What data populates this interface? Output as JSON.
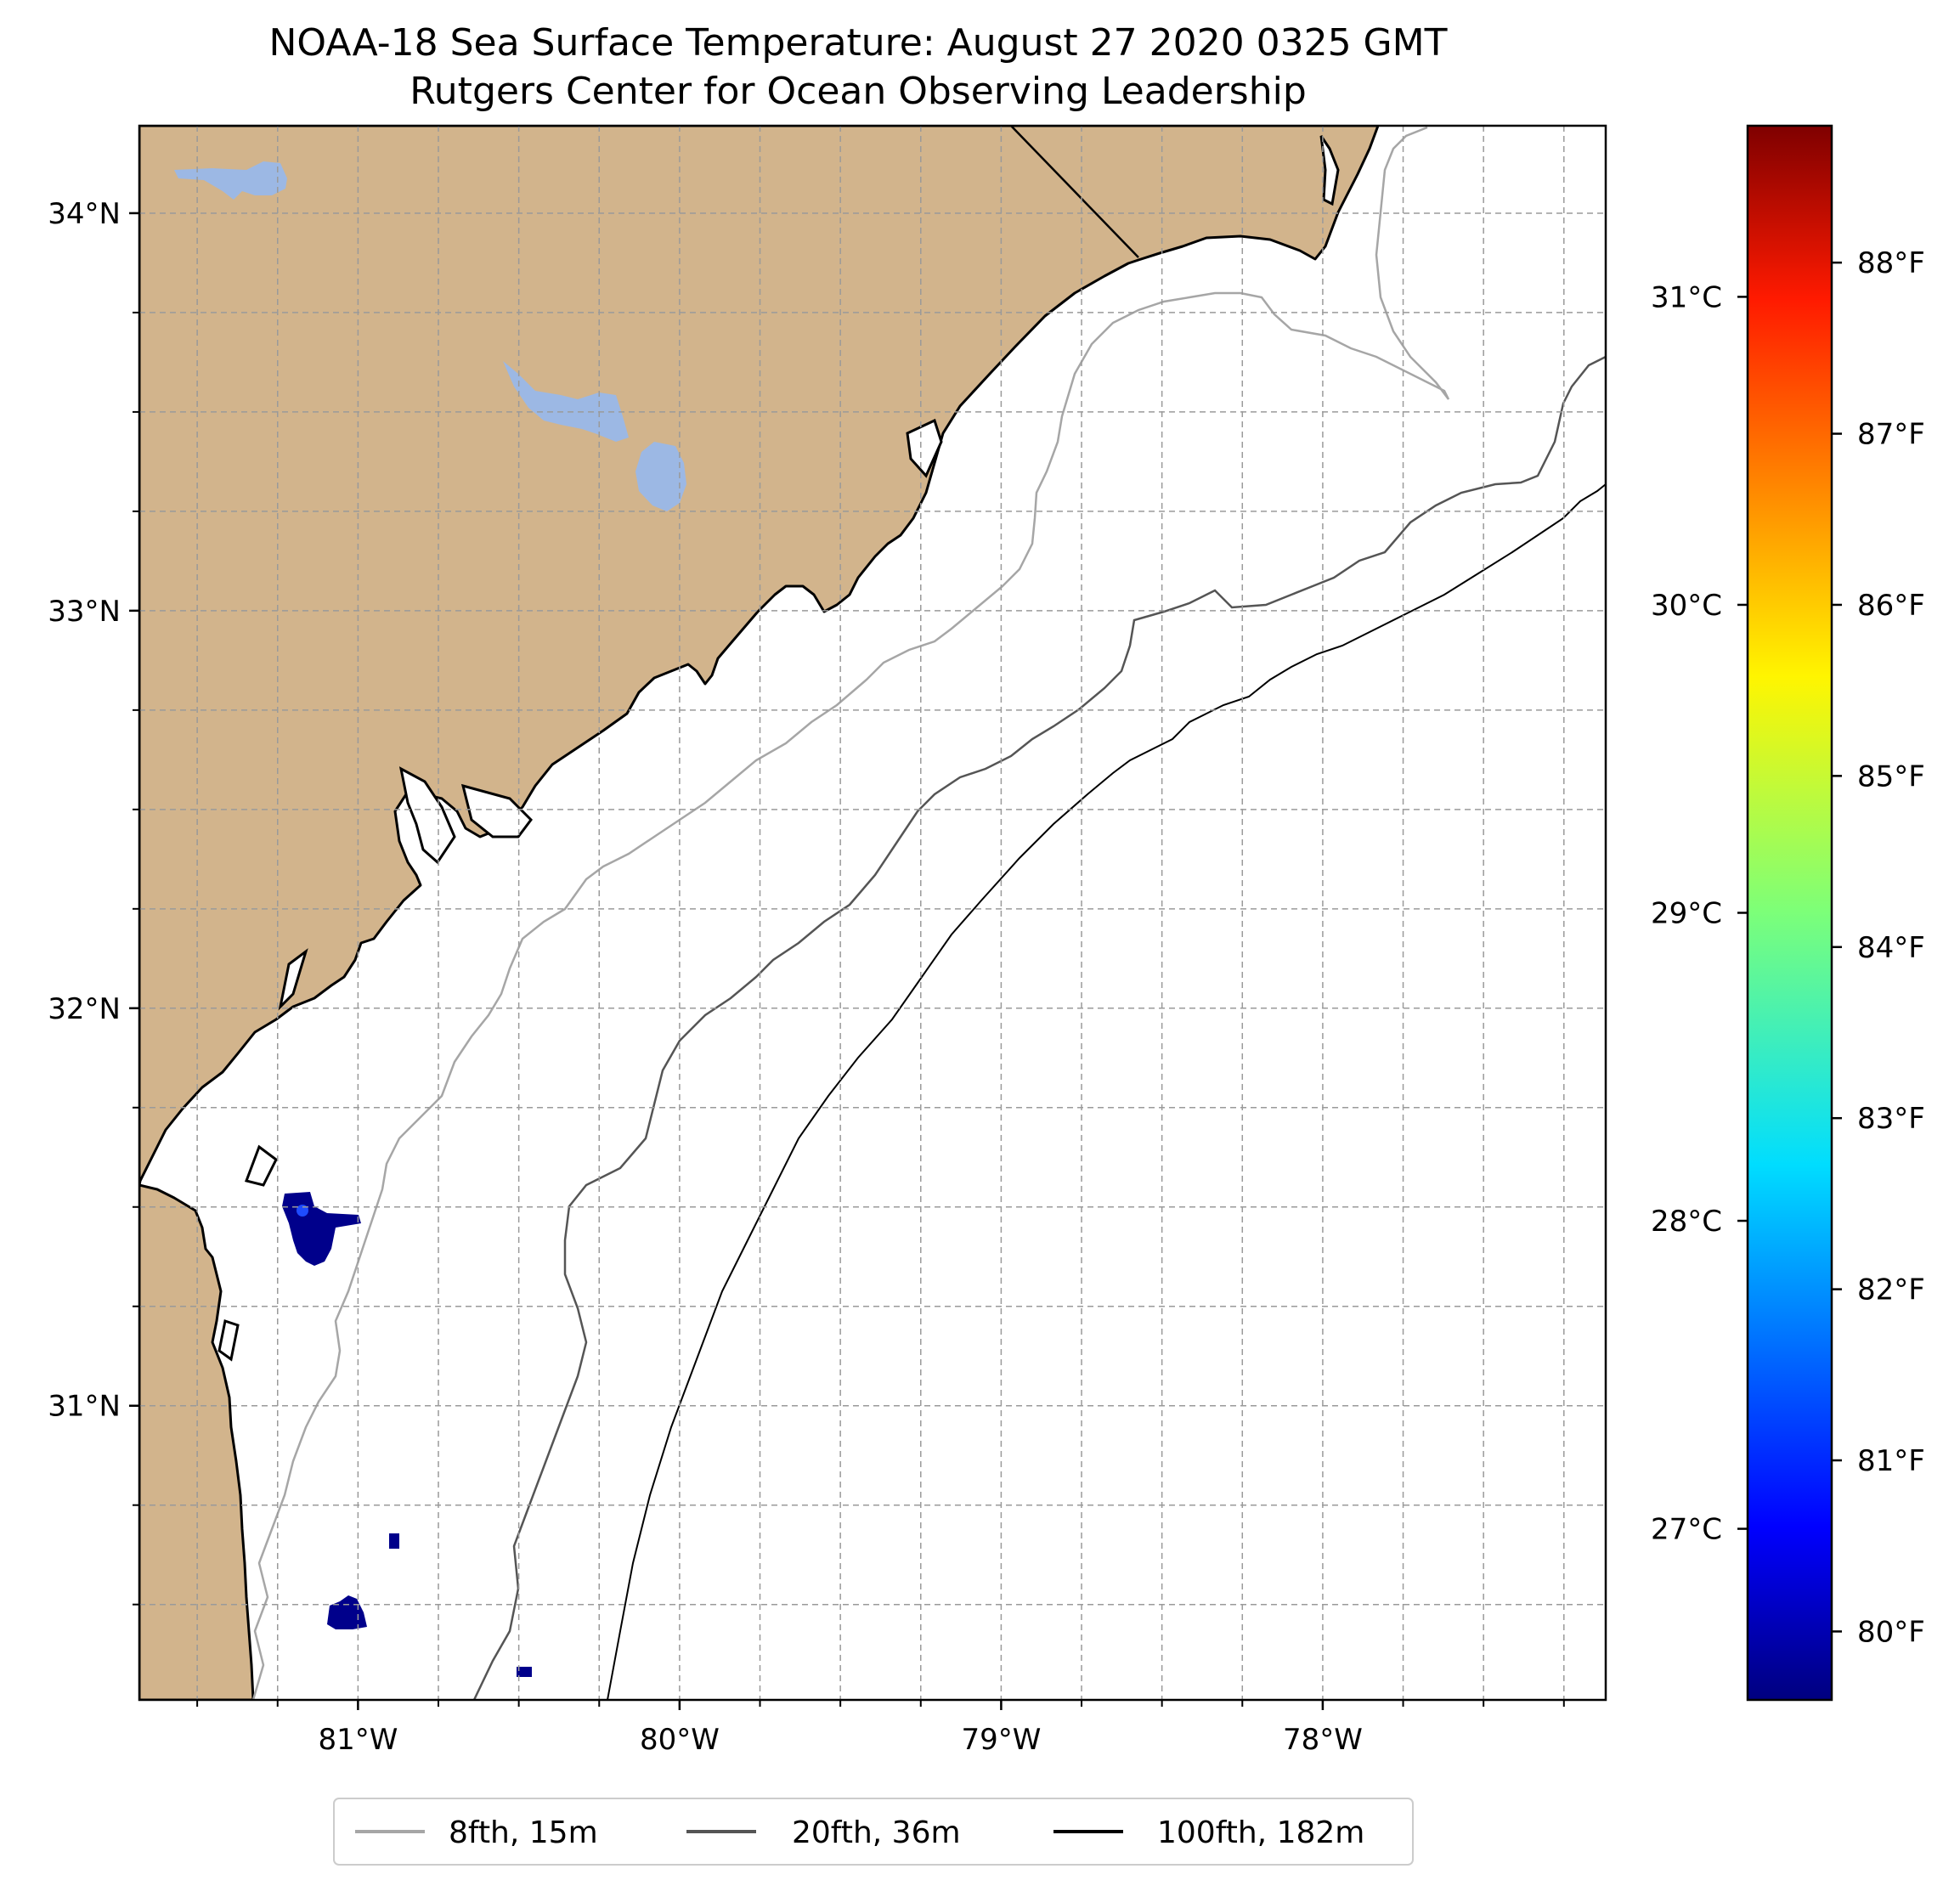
{
  "title": {
    "line1": "NOAA-18 Sea Surface Temperature: August 27 2020 0325 GMT",
    "line2": "Rutgers Center for Ocean Observing Leadership"
  },
  "map": {
    "lon_range": [
      -81.68,
      -77.12
    ],
    "lat_range": [
      30.26,
      34.22
    ],
    "lat_ticks": [
      {
        "value": 34,
        "label": "34°N"
      },
      {
        "value": 33,
        "label": "33°N"
      },
      {
        "value": 32,
        "label": "32°N"
      },
      {
        "value": 31,
        "label": "31°N"
      }
    ],
    "lon_ticks": [
      {
        "value": -81,
        "label": "81°W"
      },
      {
        "value": -80,
        "label": "80°W"
      },
      {
        "value": -79,
        "label": "79°W"
      },
      {
        "value": -78,
        "label": "78°W"
      }
    ],
    "gridlines": true,
    "colors": {
      "land": "#D2B48C",
      "lake": "#9CB8E4",
      "ocean": "#FFFFFF",
      "coast": "#000000",
      "sst_cold": "#00008B",
      "isobath_8fth": "#A6A6A6",
      "isobath_20fth": "#555555",
      "isobath_100fth": "#000000"
    }
  },
  "colorbar": {
    "colormap": "jet",
    "celsius_ticks": [
      {
        "value": 31,
        "label": "31°C"
      },
      {
        "value": 30,
        "label": "30°C"
      },
      {
        "value": 29,
        "label": "29°C"
      },
      {
        "value": 28,
        "label": "28°C"
      },
      {
        "value": 27,
        "label": "27°C"
      }
    ],
    "fahrenheit_ticks": [
      {
        "value": 88,
        "label": "88°F"
      },
      {
        "value": 87,
        "label": "87°F"
      },
      {
        "value": 86,
        "label": "86°F"
      },
      {
        "value": 85,
        "label": "85°F"
      },
      {
        "value": 84,
        "label": "84°F"
      },
      {
        "value": 83,
        "label": "83°F"
      },
      {
        "value": 82,
        "label": "82°F"
      },
      {
        "value": 81,
        "label": "81°F"
      },
      {
        "value": 80,
        "label": "80°F"
      }
    ]
  },
  "legend": {
    "placement": "bottom-center",
    "items": [
      {
        "label": "8fth, 15m",
        "color": "#A6A6A6"
      },
      {
        "label": "20fth, 36m",
        "color": "#555555"
      },
      {
        "label": "100fth, 182m",
        "color": "#000000"
      }
    ]
  }
}
